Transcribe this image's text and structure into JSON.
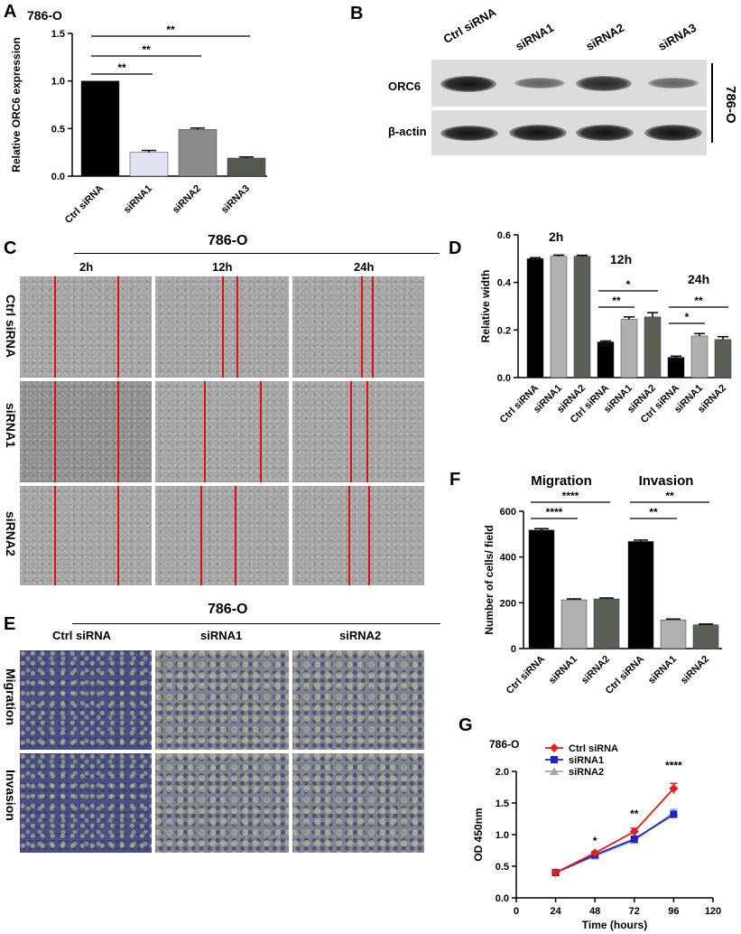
{
  "panels": {
    "A": {
      "letter": "A",
      "cell_line": "786-O",
      "chart_data": {
        "type": "bar",
        "title": "786-O",
        "ylabel": "Relative ORC6 expression",
        "categories": [
          "Ctrl siRNA",
          "siRNA1",
          "siRNA2",
          "siRNA3"
        ],
        "values": [
          1.0,
          0.25,
          0.49,
          0.19
        ],
        "errors": [
          0.0,
          0.02,
          0.015,
          0.012
        ],
        "ylim": [
          0,
          1.5
        ],
        "yticks": [
          "0.0",
          "0.5",
          "1.0",
          "1.5"
        ],
        "colors": [
          "#000000",
          "#e2e2f2",
          "#8c8c8c",
          "#55584f"
        ],
        "significance": [
          {
            "from": "Ctrl siRNA",
            "to": "siRNA1",
            "label": "**"
          },
          {
            "from": "Ctrl siRNA",
            "to": "siRNA2",
            "label": "**"
          },
          {
            "from": "Ctrl siRNA",
            "to": "siRNA3",
            "label": "**"
          }
        ]
      }
    },
    "B": {
      "letter": "B",
      "lanes": [
        "Ctrl siRNA",
        "siRNA1",
        "siRNA2",
        "siRNA3"
      ],
      "rows": [
        "ORC6",
        "β-actin"
      ],
      "cell_line": "786-O"
    },
    "C": {
      "letter": "C",
      "cell_line": "786-O",
      "timepoints": [
        "2h",
        "12h",
        "24h"
      ],
      "rows": [
        "Ctrl siRNA",
        "siRNA1",
        "siRNA2"
      ]
    },
    "D": {
      "letter": "D",
      "chart_data": {
        "type": "bar",
        "ylabel": "Relative width",
        "ylim": [
          0,
          0.6
        ],
        "yticks": [
          "0.0",
          "0.2",
          "0.4",
          "0.6"
        ],
        "groups": [
          {
            "label": "2h",
            "categories": [
              "Ctrl siRNA",
              "siRNA1",
              "siRNA2"
            ],
            "values": [
              0.5,
              0.51,
              0.51
            ],
            "errors": [
              0.004,
              0.005,
              0.004
            ]
          },
          {
            "label": "12h",
            "categories": [
              "Ctrl siRNA",
              "siRNA1",
              "siRNA2"
            ],
            "values": [
              0.15,
              0.245,
              0.255
            ],
            "errors": [
              0.004,
              0.01,
              0.018
            ]
          },
          {
            "label": "24h",
            "categories": [
              "Ctrl siRNA",
              "siRNA1",
              "siRNA2"
            ],
            "values": [
              0.085,
              0.175,
              0.16
            ],
            "errors": [
              0.005,
              0.01,
              0.012
            ]
          }
        ],
        "colors": [
          "#000000",
          "#b0b0b0",
          "#5b5f58"
        ],
        "significance": [
          {
            "group": "12h",
            "from": "Ctrl siRNA",
            "to": "siRNA1",
            "label": "**"
          },
          {
            "group": "12h",
            "from": "Ctrl siRNA",
            "to": "siRNA2",
            "label": "*"
          },
          {
            "group": "24h",
            "from": "Ctrl siRNA",
            "to": "siRNA1",
            "label": "*"
          },
          {
            "group": "24h",
            "from": "Ctrl siRNA",
            "to": "siRNA2",
            "label": "**"
          }
        ]
      }
    },
    "E": {
      "letter": "E",
      "cell_line": "786-O",
      "columns": [
        "Ctrl siRNA",
        "siRNA1",
        "siRNA2"
      ],
      "rows": [
        "Migration",
        "Invasion"
      ]
    },
    "F": {
      "letter": "F",
      "chart_data": {
        "type": "bar",
        "ylabel": "Number of cells/ field",
        "ylim": [
          0,
          600
        ],
        "yticks": [
          "0",
          "200",
          "400",
          "600"
        ],
        "groups": [
          {
            "label": "Migration",
            "categories": [
              "Ctrl siRNA",
              "siRNA1",
              "siRNA2"
            ],
            "values": [
              518,
              213,
              217
            ],
            "errors": [
              6,
              4,
              4
            ]
          },
          {
            "label": "Invasion",
            "categories": [
              "Ctrl siRNA",
              "siRNA1",
              "siRNA2"
            ],
            "values": [
              468,
              125,
              104
            ],
            "errors": [
              6,
              4,
              3
            ]
          }
        ],
        "colors": [
          "#000000",
          "#b0b0b0",
          "#5b5f58"
        ],
        "significance": [
          {
            "group": "Migration",
            "from": "Ctrl siRNA",
            "to": "siRNA1",
            "label": "****"
          },
          {
            "group": "Migration",
            "from": "Ctrl siRNA",
            "to": "siRNA2",
            "label": "****"
          },
          {
            "group": "Invasion",
            "from": "Ctrl siRNA",
            "to": "siRNA1",
            "label": "**"
          },
          {
            "group": "Invasion",
            "from": "Ctrl siRNA",
            "to": "siRNA2",
            "label": "**"
          }
        ]
      }
    },
    "G": {
      "letter": "G",
      "chart_data": {
        "type": "line",
        "title": "786-O",
        "xlabel": "Time (hours)",
        "ylabel": "OD 450nm",
        "x": [
          24,
          48,
          72,
          96
        ],
        "xlim": [
          0,
          120
        ],
        "ylim": [
          0,
          2.0
        ],
        "xticks": [
          "0",
          "24",
          "48",
          "72",
          "96",
          "120"
        ],
        "yticks": [
          "0.0",
          "0.5",
          "1.0",
          "1.5",
          "2.0"
        ],
        "series": [
          {
            "name": "Ctrl siRNA",
            "values": [
              0.4,
              0.71,
              1.05,
              1.73
            ],
            "errors": [
              0.02,
              0.02,
              0.05,
              0.08
            ],
            "color": "#e0201c",
            "marker": "diamond"
          },
          {
            "name": "siRNA1",
            "values": [
              0.4,
              0.68,
              0.93,
              1.32
            ],
            "errors": [
              0.02,
              0.02,
              0.03,
              0.05
            ],
            "color": "#1a24c8",
            "marker": "square"
          },
          {
            "name": "siRNA2",
            "values": [
              0.4,
              0.66,
              0.91,
              1.35
            ],
            "errors": [
              0.02,
              0.02,
              0.03,
              0.05
            ],
            "color": "#a8a8a8",
            "marker": "triangle"
          }
        ],
        "significance": [
          {
            "x": 48,
            "label": "*"
          },
          {
            "x": 72,
            "label": "**"
          },
          {
            "x": 96,
            "label": "****"
          }
        ],
        "legend_position": "top-left"
      }
    }
  }
}
